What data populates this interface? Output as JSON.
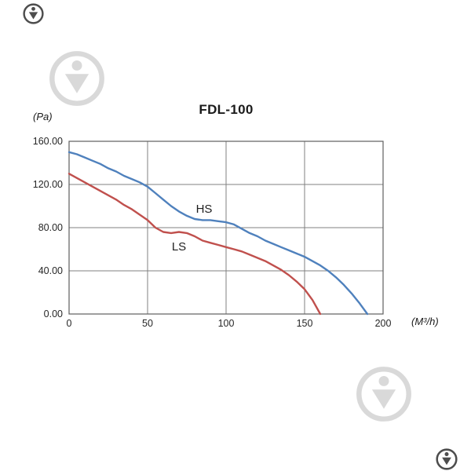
{
  "icons": {
    "watermark": "circle-pin-down-logo"
  },
  "chart_data": {
    "type": "line",
    "title": "FDL-100",
    "ylabel": "(Pa)",
    "xlabel": "(M³/h)",
    "xlim": [
      0,
      200
    ],
    "ylim": [
      0,
      160
    ],
    "grid": true,
    "legend_position": "inline-labels",
    "x_ticks": [
      {
        "value": 0,
        "label": "0"
      },
      {
        "value": 50,
        "label": "50"
      },
      {
        "value": 100,
        "label": "100"
      },
      {
        "value": 150,
        "label": "150"
      },
      {
        "value": 200,
        "label": "200"
      }
    ],
    "y_ticks": [
      {
        "value": 0,
        "label": "0.00"
      },
      {
        "value": 40,
        "label": "40.00"
      },
      {
        "value": 80,
        "label": "80.00"
      },
      {
        "value": 120,
        "label": "120.00"
      },
      {
        "value": 160,
        "label": "160.00"
      }
    ],
    "series": [
      {
        "name": "HS",
        "color": "#4f81bd",
        "label_x": 86,
        "label_y": 94,
        "points": [
          [
            0,
            150
          ],
          [
            5,
            148
          ],
          [
            10,
            145
          ],
          [
            15,
            142
          ],
          [
            20,
            139
          ],
          [
            25,
            135
          ],
          [
            30,
            132
          ],
          [
            35,
            128
          ],
          [
            40,
            125
          ],
          [
            45,
            122
          ],
          [
            50,
            118
          ],
          [
            55,
            112
          ],
          [
            60,
            106
          ],
          [
            65,
            100
          ],
          [
            70,
            95
          ],
          [
            75,
            91
          ],
          [
            80,
            88
          ],
          [
            85,
            87
          ],
          [
            90,
            87
          ],
          [
            95,
            86
          ],
          [
            100,
            85
          ],
          [
            105,
            83
          ],
          [
            110,
            79
          ],
          [
            115,
            75
          ],
          [
            120,
            72
          ],
          [
            125,
            68
          ],
          [
            130,
            65
          ],
          [
            135,
            62
          ],
          [
            140,
            59
          ],
          [
            145,
            56
          ],
          [
            150,
            53
          ],
          [
            155,
            49
          ],
          [
            160,
            45
          ],
          [
            165,
            40
          ],
          [
            170,
            34
          ],
          [
            175,
            27
          ],
          [
            180,
            19
          ],
          [
            185,
            10
          ],
          [
            190,
            0
          ]
        ]
      },
      {
        "name": "LS",
        "color": "#c0504d",
        "label_x": 70,
        "label_y": 59,
        "points": [
          [
            0,
            130
          ],
          [
            5,
            126
          ],
          [
            10,
            122
          ],
          [
            15,
            118
          ],
          [
            20,
            114
          ],
          [
            25,
            110
          ],
          [
            30,
            106
          ],
          [
            35,
            101
          ],
          [
            40,
            97
          ],
          [
            45,
            92
          ],
          [
            50,
            87
          ],
          [
            55,
            80
          ],
          [
            60,
            76
          ],
          [
            65,
            75
          ],
          [
            70,
            76
          ],
          [
            75,
            75
          ],
          [
            80,
            72
          ],
          [
            85,
            68
          ],
          [
            90,
            66
          ],
          [
            95,
            64
          ],
          [
            100,
            62
          ],
          [
            105,
            60
          ],
          [
            110,
            58
          ],
          [
            115,
            55
          ],
          [
            120,
            52
          ],
          [
            125,
            49
          ],
          [
            130,
            45
          ],
          [
            135,
            41
          ],
          [
            140,
            36
          ],
          [
            145,
            30
          ],
          [
            150,
            23
          ],
          [
            155,
            13
          ],
          [
            160,
            0
          ]
        ]
      }
    ]
  }
}
